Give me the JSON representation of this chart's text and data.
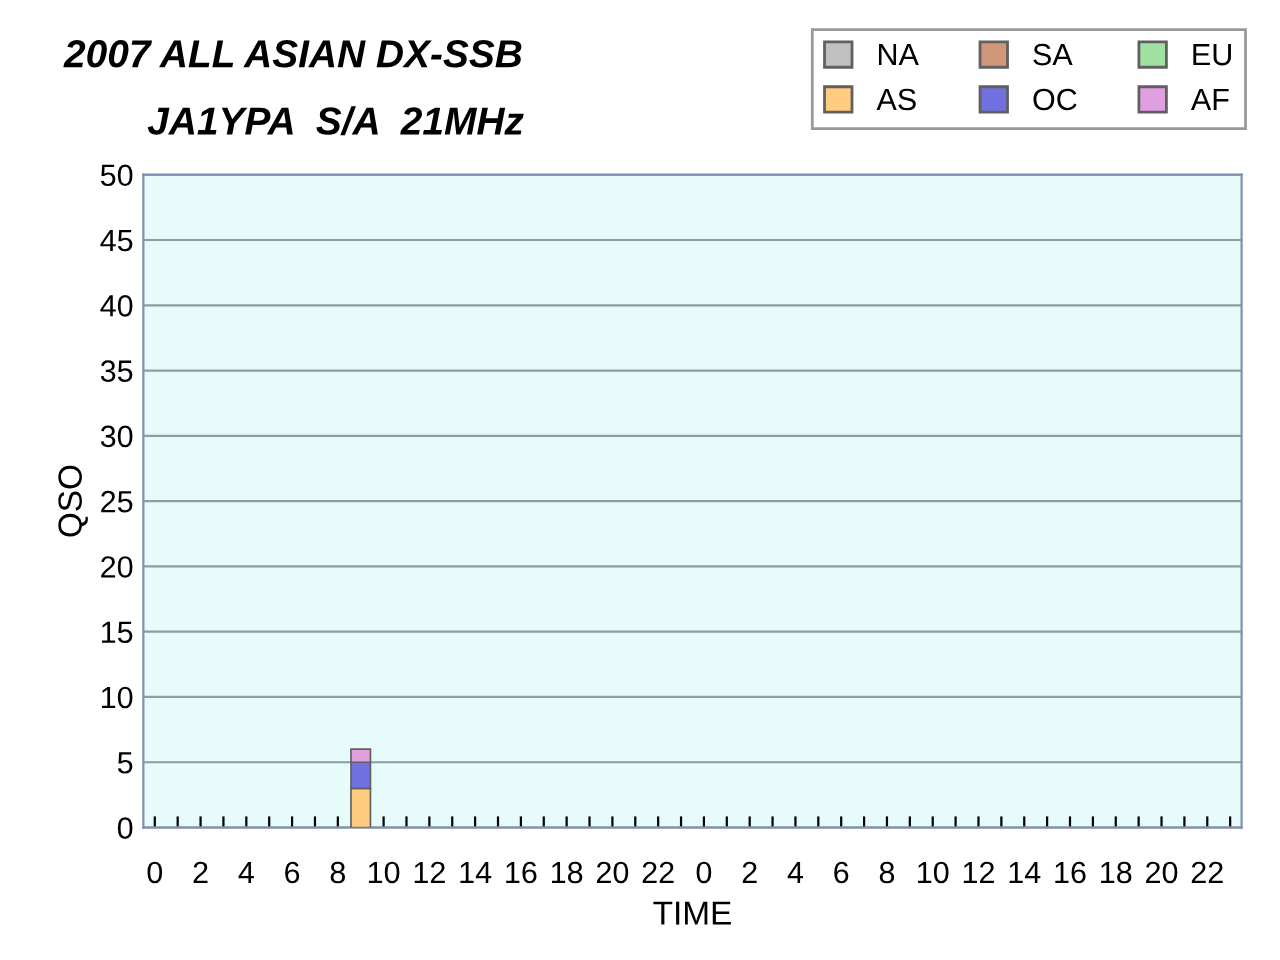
{
  "chart_data": {
    "type": "bar",
    "title": "2007 ALL ASIAN DX-SSB",
    "subtitle": "JA1YPA  S/A  21MHz",
    "xlabel": "TIME",
    "ylabel": "QSO",
    "categories": [
      "0",
      null,
      "2",
      null,
      "4",
      null,
      "6",
      null,
      "8",
      null,
      "10",
      null,
      "12",
      null,
      "14",
      null,
      "16",
      null,
      "18",
      null,
      "20",
      null,
      "22",
      null,
      "0",
      null,
      "2",
      null,
      "4",
      null,
      "6",
      null,
      "8",
      null,
      "10",
      null,
      "12",
      null,
      "14",
      null,
      "16",
      null,
      "18",
      null,
      "20",
      null,
      "22",
      null
    ],
    "stacked": true,
    "ylim": [
      0,
      50
    ],
    "yticks": [
      0,
      5,
      10,
      15,
      20,
      25,
      30,
      35,
      40,
      45,
      50
    ],
    "grid": "y",
    "legend": "top right",
    "series": [
      {
        "name": "NA",
        "color": "#c0c0c0",
        "values": [
          0,
          0,
          0,
          0,
          0,
          0,
          0,
          0,
          0,
          0,
          0,
          0,
          0,
          0,
          0,
          0,
          0,
          0,
          0,
          0,
          0,
          0,
          0,
          0,
          0,
          0,
          0,
          0,
          0,
          0,
          0,
          0,
          0,
          0,
          0,
          0,
          0,
          0,
          0,
          0,
          0,
          0,
          0,
          0,
          0,
          0,
          0,
          0
        ]
      },
      {
        "name": "AS",
        "color": "#ffcc80",
        "values": [
          0,
          0,
          0,
          0,
          0,
          0,
          0,
          0,
          0,
          3,
          0,
          0,
          0,
          0,
          0,
          0,
          0,
          0,
          0,
          0,
          0,
          0,
          0,
          0,
          0,
          0,
          0,
          0,
          0,
          0,
          0,
          0,
          0,
          0,
          0,
          0,
          0,
          0,
          0,
          0,
          0,
          0,
          0,
          0,
          0,
          0,
          0,
          0
        ]
      },
      {
        "name": "SA",
        "color": "#d09878",
        "values": [
          0,
          0,
          0,
          0,
          0,
          0,
          0,
          0,
          0,
          0,
          0,
          0,
          0,
          0,
          0,
          0,
          0,
          0,
          0,
          0,
          0,
          0,
          0,
          0,
          0,
          0,
          0,
          0,
          0,
          0,
          0,
          0,
          0,
          0,
          0,
          0,
          0,
          0,
          0,
          0,
          0,
          0,
          0,
          0,
          0,
          0,
          0,
          0
        ]
      },
      {
        "name": "OC",
        "color": "#7070e0",
        "values": [
          0,
          0,
          0,
          0,
          0,
          0,
          0,
          0,
          0,
          2,
          0,
          0,
          0,
          0,
          0,
          0,
          0,
          0,
          0,
          0,
          0,
          0,
          0,
          0,
          0,
          0,
          0,
          0,
          0,
          0,
          0,
          0,
          0,
          0,
          0,
          0,
          0,
          0,
          0,
          0,
          0,
          0,
          0,
          0,
          0,
          0,
          0,
          0
        ]
      },
      {
        "name": "EU",
        "color": "#a0e0a0",
        "values": [
          0,
          0,
          0,
          0,
          0,
          0,
          0,
          0,
          0,
          0,
          0,
          0,
          0,
          0,
          0,
          0,
          0,
          0,
          0,
          0,
          0,
          0,
          0,
          0,
          0,
          0,
          0,
          0,
          0,
          0,
          0,
          0,
          0,
          0,
          0,
          0,
          0,
          0,
          0,
          0,
          0,
          0,
          0,
          0,
          0,
          0,
          0,
          0
        ]
      },
      {
        "name": "AF",
        "color": "#e0a0e0",
        "values": [
          0,
          0,
          0,
          0,
          0,
          0,
          0,
          0,
          0,
          1,
          0,
          0,
          0,
          0,
          0,
          0,
          0,
          0,
          0,
          0,
          0,
          0,
          0,
          0,
          0,
          0,
          0,
          0,
          0,
          0,
          0,
          0,
          0,
          0,
          0,
          0,
          0,
          0,
          0,
          0,
          0,
          0,
          0,
          0,
          0,
          0,
          0,
          0
        ]
      }
    ]
  }
}
